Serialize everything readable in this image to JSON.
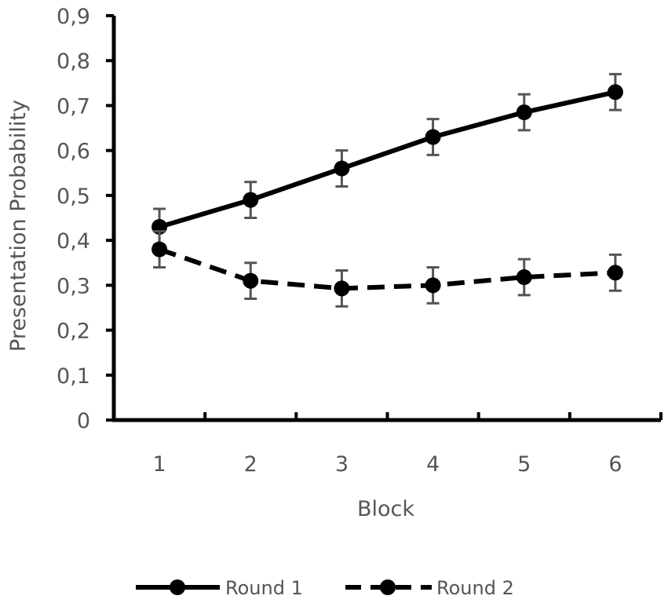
{
  "chart_data": {
    "type": "line",
    "title": "",
    "xlabel": "Block",
    "ylabel": "Presentation Probability",
    "categories": [
      "1",
      "2",
      "3",
      "4",
      "5",
      "6"
    ],
    "yticks": [
      "0",
      "0,1",
      "0,2",
      "0,3",
      "0,4",
      "0,5",
      "0,6",
      "0,7",
      "0,8",
      "0,9"
    ],
    "ylim": [
      0,
      0.9
    ],
    "grid": false,
    "legend_position": "bottom",
    "series": [
      {
        "name": "Round 1",
        "line_style": "solid",
        "values": [
          0.43,
          0.49,
          0.56,
          0.63,
          0.685,
          0.73
        ],
        "errors": [
          0.04,
          0.04,
          0.04,
          0.04,
          0.04,
          0.04
        ]
      },
      {
        "name": "Round 2",
        "line_style": "dashed",
        "values": [
          0.38,
          0.31,
          0.293,
          0.3,
          0.318,
          0.328
        ],
        "errors": [
          0.04,
          0.04,
          0.04,
          0.04,
          0.04,
          0.04
        ]
      }
    ],
    "colors": {
      "series": "#000000",
      "error_bars": "#555555",
      "text": "#555555",
      "axes": "#000000"
    }
  }
}
